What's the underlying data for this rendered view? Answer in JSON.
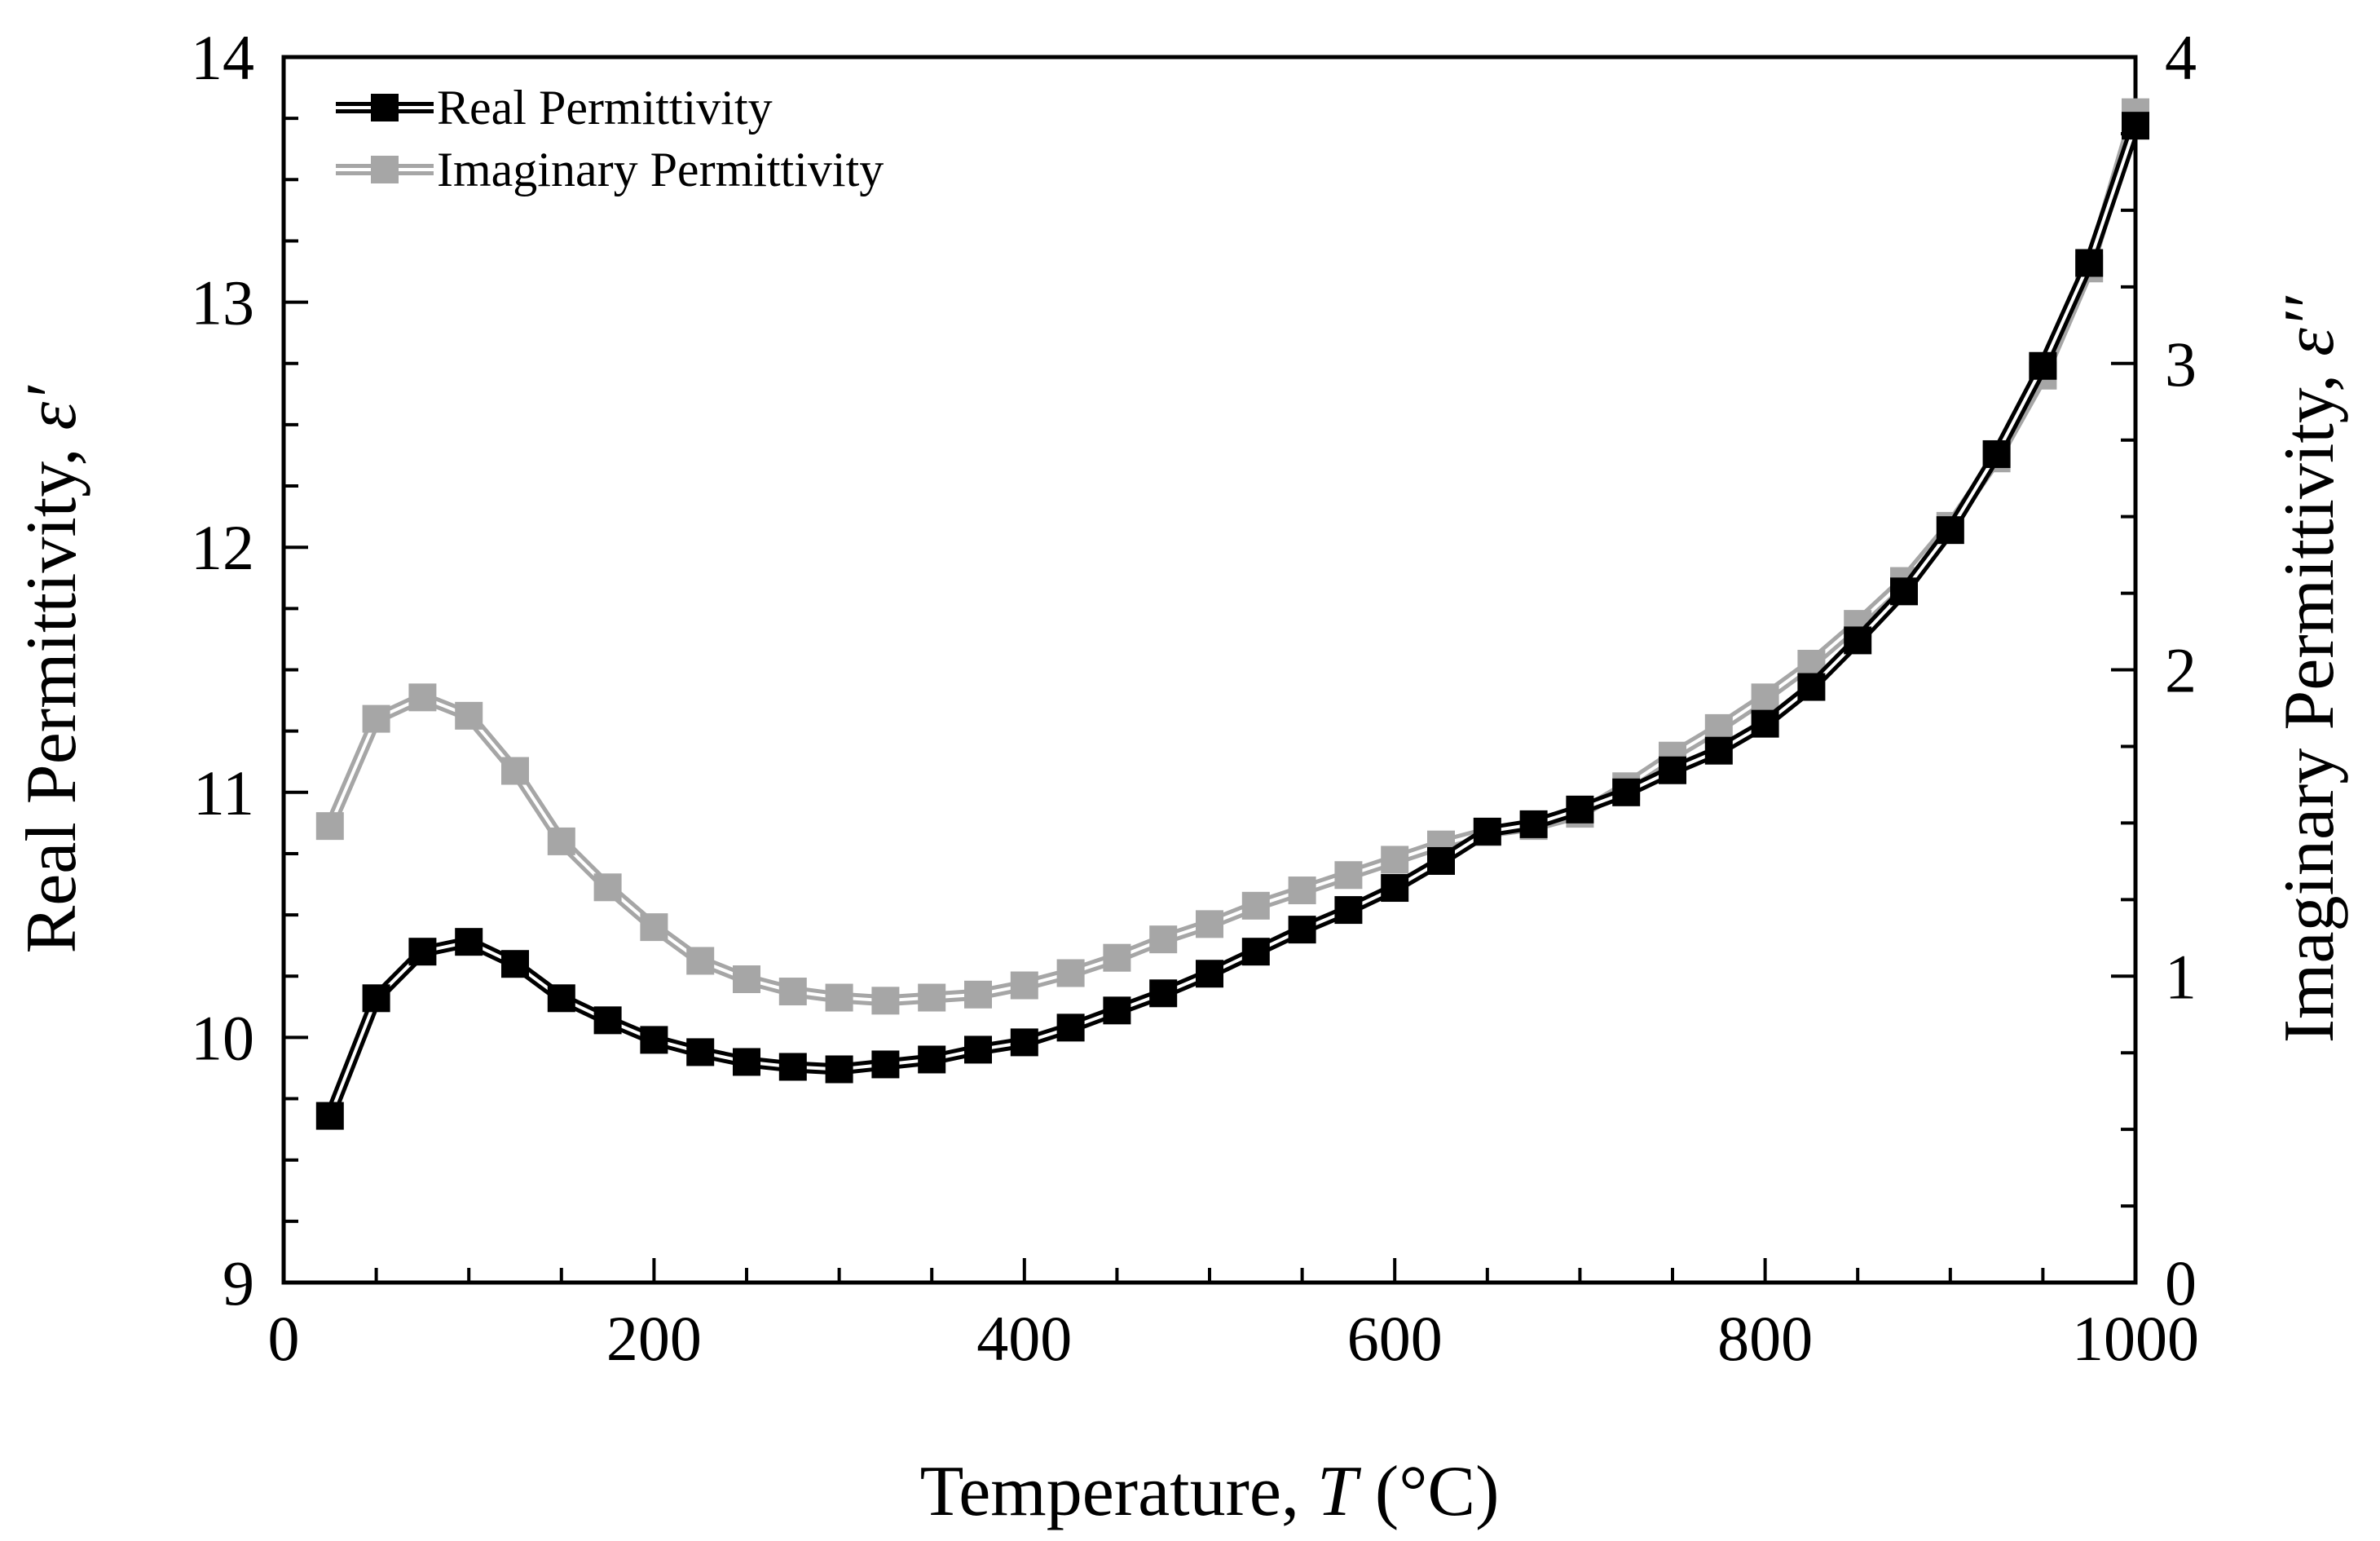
{
  "chart_data": {
    "type": "line",
    "title": "",
    "xlabel": "Temperature, ",
    "xlabel_var": "T",
    "xlabel_unit": " (°C)",
    "ylabel": "Real Permittivity, ",
    "ylabel_sym": "ε′",
    "y2label": "Imaginary Permittivity, ",
    "y2label_sym": "ε′′",
    "xlim": [
      0,
      1000
    ],
    "ylim": [
      9,
      14
    ],
    "y2lim": [
      0,
      4
    ],
    "x_ticks": [
      "0",
      "200",
      "400",
      "600",
      "800",
      "1000"
    ],
    "y_ticks": [
      "9",
      "10",
      "11",
      "12",
      "13",
      "14"
    ],
    "y2_ticks": [
      "0",
      "1",
      "2",
      "3",
      "4"
    ],
    "grid": false,
    "legend_position": "top-left",
    "series": [
      {
        "name": "Real Permittivity",
        "axis": "left",
        "color": "#000000",
        "x": [
          25,
          50,
          75,
          100,
          125,
          150,
          175,
          200,
          225,
          250,
          275,
          300,
          325,
          350,
          375,
          400,
          425,
          450,
          475,
          500,
          525,
          550,
          575,
          600,
          625,
          650,
          675,
          700,
          725,
          750,
          775,
          800,
          825,
          850,
          875,
          900,
          925,
          950,
          975,
          1000
        ],
        "values": [
          9.68,
          10.16,
          10.35,
          10.39,
          10.3,
          10.16,
          10.07,
          9.99,
          9.94,
          9.9,
          9.88,
          9.87,
          9.89,
          9.91,
          9.95,
          9.98,
          10.04,
          10.11,
          10.18,
          10.26,
          10.35,
          10.44,
          10.52,
          10.61,
          10.72,
          10.84,
          10.87,
          10.93,
          11.0,
          11.09,
          11.17,
          11.28,
          11.43,
          11.62,
          11.82,
          12.07,
          12.38,
          12.74,
          13.16,
          13.72
        ]
      },
      {
        "name": "Imaginary Permittivity",
        "axis": "right",
        "color": "#a6a6a6",
        "x": [
          25,
          50,
          75,
          100,
          125,
          150,
          175,
          200,
          225,
          250,
          275,
          300,
          325,
          350,
          375,
          400,
          425,
          450,
          475,
          500,
          525,
          550,
          575,
          600,
          625,
          650,
          675,
          700,
          725,
          750,
          775,
          800,
          825,
          850,
          875,
          900,
          925,
          950,
          975,
          1000
        ],
        "values": [
          1.49,
          1.84,
          1.91,
          1.85,
          1.67,
          1.44,
          1.29,
          1.16,
          1.05,
          0.99,
          0.95,
          0.93,
          0.92,
          0.93,
          0.94,
          0.97,
          1.01,
          1.06,
          1.12,
          1.17,
          1.23,
          1.28,
          1.33,
          1.38,
          1.43,
          1.47,
          1.49,
          1.53,
          1.62,
          1.72,
          1.81,
          1.91,
          2.02,
          2.15,
          2.29,
          2.47,
          2.69,
          2.96,
          3.31,
          3.82
        ]
      }
    ]
  }
}
